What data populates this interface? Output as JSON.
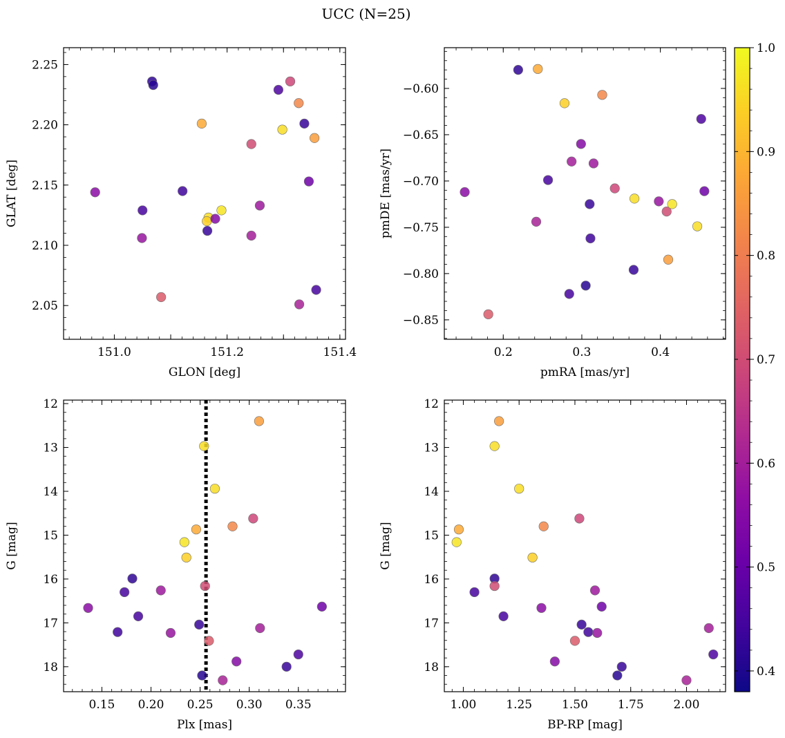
{
  "title": "UCC (N=25)",
  "colorbar": {
    "cmap": "plasma",
    "vmin": 0.38,
    "vmax": 1.0,
    "ticks": [
      0.4,
      0.5,
      0.6,
      0.7,
      0.8,
      0.9,
      1.0
    ],
    "tick_labels": [
      "0.4",
      "0.5",
      "0.6",
      "0.7",
      "0.8",
      "0.9",
      "1.0"
    ]
  },
  "members": [
    {
      "glon": 151.067,
      "glat": 2.236,
      "pmra": 0.219,
      "pmde": -0.58,
      "plx": 0.181,
      "g": 15.99,
      "bprp": 1.14,
      "p": 0.42
    },
    {
      "glon": 151.069,
      "glat": 2.233,
      "pmra": 0.305,
      "pmde": -0.813,
      "plx": 0.252,
      "g": 18.2,
      "bprp": 1.69,
      "p": 0.41
    },
    {
      "glon": 151.155,
      "glat": 2.201,
      "pmra": 0.244,
      "pmde": -0.579,
      "plx": 0.246,
      "g": 14.87,
      "bprp": 0.98,
      "p": 0.88
    },
    {
      "glon": 151.291,
      "glat": 2.229,
      "pmra": 0.452,
      "pmde": -0.633,
      "plx": 0.35,
      "g": 17.72,
      "bprp": 2.12,
      "p": 0.46
    },
    {
      "glon": 151.312,
      "glat": 2.236,
      "pmra": 0.342,
      "pmde": -0.708,
      "plx": 0.304,
      "g": 14.62,
      "bprp": 1.52,
      "p": 0.69
    },
    {
      "glon": 151.327,
      "glat": 2.218,
      "pmra": 0.326,
      "pmde": -0.607,
      "plx": 0.283,
      "g": 14.8,
      "bprp": 1.36,
      "p": 0.82
    },
    {
      "glon": 151.298,
      "glat": 2.196,
      "pmra": 0.447,
      "pmde": -0.749,
      "plx": 0.254,
      "g": 12.97,
      "bprp": 1.14,
      "p": 0.96
    },
    {
      "glon": 151.337,
      "glat": 2.201,
      "pmra": 0.366,
      "pmde": -0.796,
      "plx": 0.338,
      "g": 18.0,
      "bprp": 1.71,
      "p": 0.43
    },
    {
      "glon": 151.355,
      "glat": 2.189,
      "pmra": 0.41,
      "pmde": -0.785,
      "plx": 0.31,
      "g": 12.4,
      "bprp": 1.16,
      "p": 0.86
    },
    {
      "glon": 151.243,
      "glat": 2.184,
      "pmra": 0.408,
      "pmde": -0.733,
      "plx": 0.255,
      "g": 16.16,
      "bprp": 1.14,
      "p": 0.7
    },
    {
      "glon": 150.966,
      "glat": 2.144,
      "pmra": 0.151,
      "pmde": -0.712,
      "plx": 0.136,
      "g": 16.66,
      "bprp": 1.35,
      "p": 0.56
    },
    {
      "glon": 151.121,
      "glat": 2.145,
      "pmra": 0.311,
      "pmde": -0.762,
      "plx": 0.166,
      "g": 17.21,
      "bprp": 1.56,
      "p": 0.44
    },
    {
      "glon": 151.345,
      "glat": 2.153,
      "pmra": 0.456,
      "pmde": -0.711,
      "plx": 0.374,
      "g": 16.63,
      "bprp": 1.62,
      "p": 0.51
    },
    {
      "glon": 151.05,
      "glat": 2.129,
      "pmra": 0.257,
      "pmde": -0.699,
      "plx": 0.173,
      "g": 16.3,
      "bprp": 1.05,
      "p": 0.45
    },
    {
      "glon": 151.19,
      "glat": 2.129,
      "pmra": 0.415,
      "pmde": -0.725,
      "plx": 0.234,
      "g": 15.16,
      "bprp": 0.97,
      "p": 0.97
    },
    {
      "glon": 151.167,
      "glat": 2.123,
      "pmra": 0.367,
      "pmde": -0.719,
      "plx": 0.265,
      "g": 13.94,
      "bprp": 1.25,
      "p": 0.96
    },
    {
      "glon": 151.164,
      "glat": 2.12,
      "pmra": 0.278,
      "pmde": -0.616,
      "plx": 0.236,
      "g": 15.51,
      "bprp": 1.31,
      "p": 0.94
    },
    {
      "glon": 151.179,
      "glat": 2.122,
      "pmra": 0.299,
      "pmde": -0.66,
      "plx": 0.287,
      "g": 17.88,
      "bprp": 1.41,
      "p": 0.55
    },
    {
      "glon": 151.258,
      "glat": 2.133,
      "pmra": 0.315,
      "pmde": -0.681,
      "plx": 0.21,
      "g": 16.26,
      "bprp": 1.59,
      "p": 0.59
    },
    {
      "glon": 151.165,
      "glat": 2.112,
      "pmra": 0.31,
      "pmde": -0.725,
      "plx": 0.249,
      "g": 17.04,
      "bprp": 1.53,
      "p": 0.43
    },
    {
      "glon": 151.049,
      "glat": 2.106,
      "pmra": 0.398,
      "pmde": -0.722,
      "plx": 0.22,
      "g": 17.23,
      "bprp": 1.6,
      "p": 0.58
    },
    {
      "glon": 151.243,
      "glat": 2.108,
      "pmra": 0.287,
      "pmde": -0.679,
      "plx": 0.311,
      "g": 17.12,
      "bprp": 2.1,
      "p": 0.6
    },
    {
      "glon": 151.083,
      "glat": 2.057,
      "pmra": 0.181,
      "pmde": -0.844,
      "plx": 0.259,
      "g": 17.41,
      "bprp": 1.5,
      "p": 0.73
    },
    {
      "glon": 151.328,
      "glat": 2.051,
      "pmra": 0.242,
      "pmde": -0.744,
      "plx": 0.273,
      "g": 18.31,
      "bprp": 2.0,
      "p": 0.61
    },
    {
      "glon": 151.358,
      "glat": 2.063,
      "pmra": 0.284,
      "pmde": -0.822,
      "plx": 0.187,
      "g": 16.85,
      "bprp": 1.18,
      "p": 0.45
    }
  ],
  "chart_data": [
    {
      "type": "scatter",
      "xlabel": "GLON [deg]",
      "ylabel": "GLAT [deg]",
      "x_field": "glon",
      "y_field": "glat",
      "xlim": [
        150.91,
        151.41
      ],
      "ylim": [
        2.022,
        2.264
      ],
      "xticks": [
        151.0,
        151.1,
        151.2,
        151.3,
        151.4
      ],
      "xtick_labels": [
        "151.0",
        "",
        "151.2",
        "",
        "151.4"
      ],
      "yticks": [
        2.05,
        2.1,
        2.15,
        2.2,
        2.25
      ],
      "ytick_labels": [
        "2.05",
        "2.10",
        "2.15",
        "2.20",
        "2.25"
      ],
      "xminor": 0.02,
      "yminor": 0.01,
      "y_inverted": false
    },
    {
      "type": "scatter",
      "xlabel": "pmRA [mas/yr]",
      "ylabel": "pmDE [mas/yr]",
      "x_field": "pmra",
      "y_field": "pmde",
      "xlim": [
        0.125,
        0.483
      ],
      "ylim": [
        -0.871,
        -0.556
      ],
      "xticks": [
        0.2,
        0.3,
        0.4
      ],
      "xtick_labels": [
        "0.2",
        "0.3",
        "0.4"
      ],
      "yticks": [
        -0.85,
        -0.8,
        -0.75,
        -0.7,
        -0.65,
        -0.6
      ],
      "ytick_labels": [
        "−0.85",
        "−0.80",
        "−0.75",
        "−0.70",
        "−0.65",
        "−0.60"
      ],
      "xminor": 0.02,
      "yminor": 0.01,
      "y_inverted": false
    },
    {
      "type": "scatter",
      "xlabel": "Plx [mas]",
      "ylabel": "G [mag]",
      "x_field": "plx",
      "y_field": "g",
      "xlim": [
        0.111,
        0.398
      ],
      "ylim": [
        18.57,
        11.92
      ],
      "xticks": [
        0.15,
        0.2,
        0.25,
        0.3,
        0.35
      ],
      "xtick_labels": [
        "0.15",
        "0.20",
        "0.25",
        "0.30",
        "0.35"
      ],
      "yticks": [
        12,
        13,
        14,
        15,
        16,
        17,
        18
      ],
      "ytick_labels": [
        "12",
        "13",
        "14",
        "15",
        "16",
        "17",
        "18"
      ],
      "xminor": 0.01,
      "yminor": 0.2,
      "y_inverted": true,
      "vline": {
        "x": 0.256,
        "style": "dotted",
        "color": "#000000"
      }
    },
    {
      "type": "scatter",
      "xlabel": "BP-RP [mag]",
      "ylabel": "G [mag]",
      "x_field": "bprp",
      "y_field": "g",
      "xlim": [
        0.915,
        2.175
      ],
      "ylim": [
        18.57,
        11.92
      ],
      "xticks": [
        1.0,
        1.25,
        1.5,
        1.75,
        2.0
      ],
      "xtick_labels": [
        "1.00",
        "1.25",
        "1.50",
        "1.75",
        "2.00"
      ],
      "yticks": [
        12,
        13,
        14,
        15,
        16,
        17,
        18
      ],
      "ytick_labels": [
        "12",
        "13",
        "14",
        "15",
        "16",
        "17",
        "18"
      ],
      "xminor": 0.05,
      "yminor": 0.2,
      "y_inverted": true
    }
  ]
}
